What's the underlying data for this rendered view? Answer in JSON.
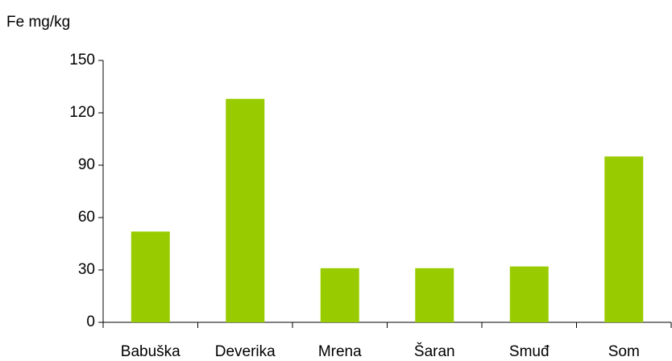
{
  "chart_data": {
    "type": "bar",
    "y_label": "Fe mg/kg",
    "categories": [
      "Babuška",
      "Deverika",
      "Mrena",
      "Šaran",
      "Smuđ",
      "Som"
    ],
    "values": [
      52,
      128,
      31,
      31,
      32,
      95
    ],
    "color": "#99cc00",
    "ylim": [
      0,
      150
    ],
    "yticks": [
      0,
      30,
      60,
      90,
      120,
      150
    ],
    "grid": false
  }
}
